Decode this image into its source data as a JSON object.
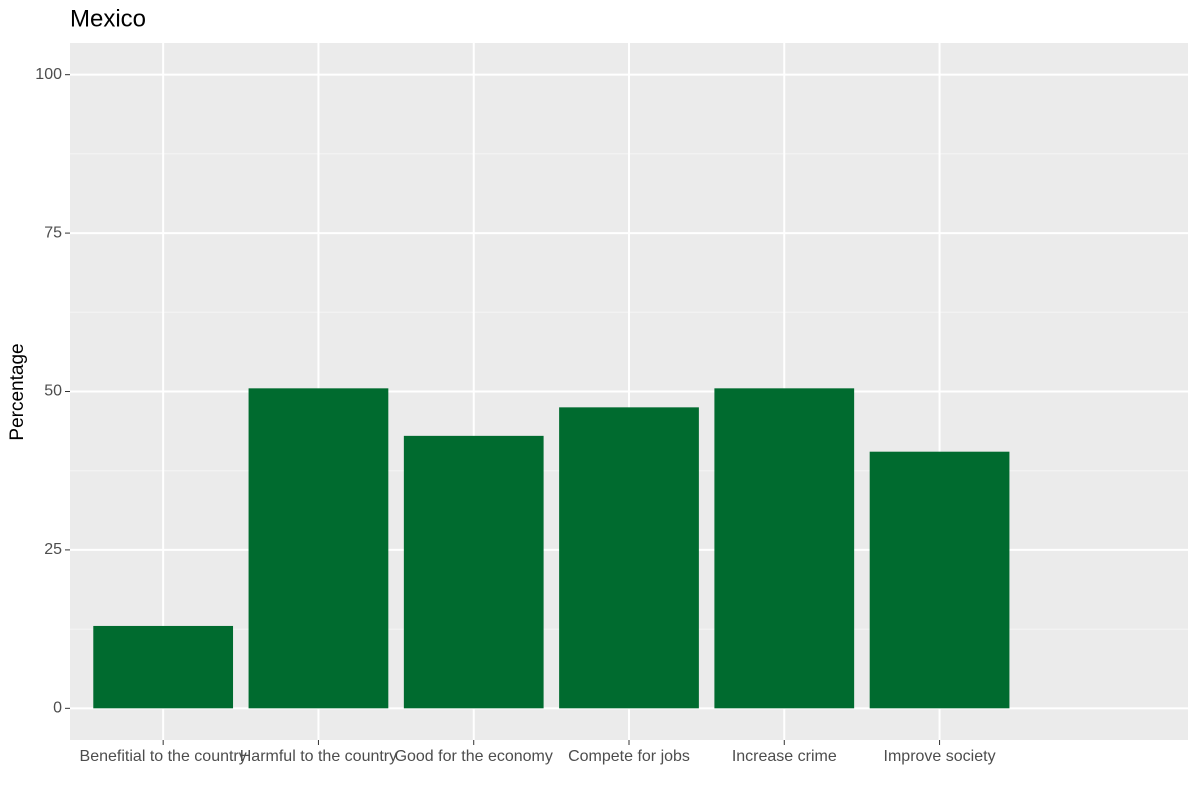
{
  "chart_data": {
    "type": "bar",
    "title": "Mexico",
    "y_label": "Percentage",
    "categories": [
      "Benefitial to the country",
      "Harmful to the country",
      "Good for the economy",
      "Compete for jobs",
      "Increase crime",
      "Improve society"
    ],
    "values": [
      13,
      50.5,
      43,
      47.5,
      50.5,
      40.5
    ],
    "color": "#006b2f",
    "ylim": [
      -5,
      105
    ],
    "yticks": [
      0,
      25,
      50,
      75,
      100
    ],
    "grid": true
  }
}
